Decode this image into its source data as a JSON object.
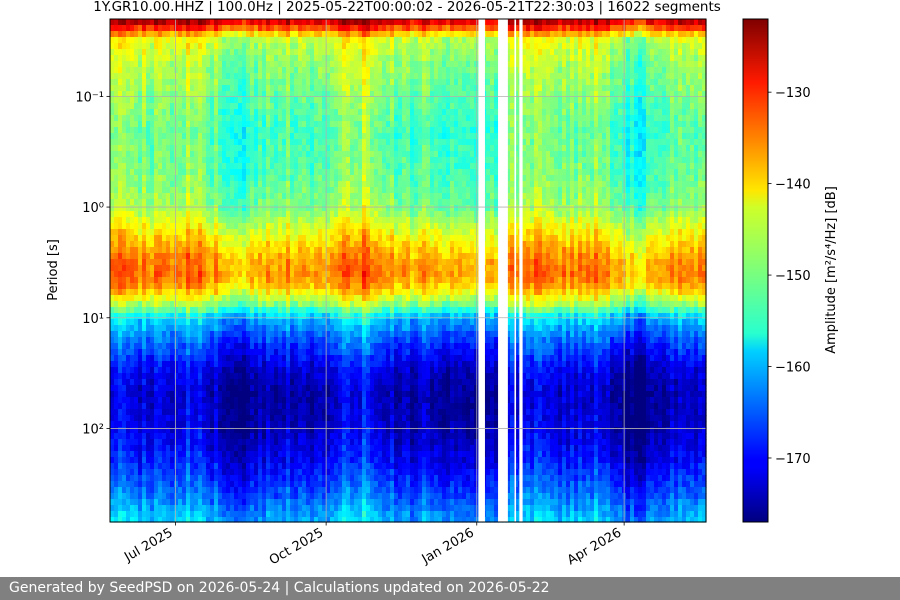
{
  "chart_data": {
    "type": "heatmap",
    "title": "1Y.GR10.00.HHZ | 100.0Hz | 2025-05-22T00:00:02 - 2026-05-21T22:30:03 | 16022 segments",
    "ylabel": "Period [s]",
    "yscale": "log",
    "ylim": [
      0.02,
      700
    ],
    "y_ticks": [
      {
        "value": 0.1,
        "label": "10⁻¹"
      },
      {
        "value": 1,
        "label": "10⁰"
      },
      {
        "value": 10,
        "label": "10¹"
      },
      {
        "value": 100,
        "label": "10²"
      }
    ],
    "x_range": [
      "2025-05-22",
      "2026-05-21"
    ],
    "x_ticks": [
      {
        "value": "2025-07-01",
        "label": "Jul 2025"
      },
      {
        "value": "2025-10-01",
        "label": "Oct 2025"
      },
      {
        "value": "2026-01-01",
        "label": "Jan 2026"
      },
      {
        "value": "2026-04-01",
        "label": "Apr 2026"
      }
    ],
    "grid": true,
    "data_gaps": [
      [
        "2026-01-02",
        "2026-01-06"
      ],
      [
        "2026-01-14",
        "2026-01-20"
      ],
      [
        "2026-01-24",
        "2026-01-25"
      ],
      [
        "2026-01-27",
        "2026-01-29"
      ]
    ],
    "colorbar": {
      "label": "Amplitude [m²/s⁴/Hz] [dB]",
      "colormap": "jet",
      "range": [
        -177,
        -122
      ],
      "ticks": [
        {
          "value": -130,
          "label": "−130"
        },
        {
          "value": -140,
          "label": "−140"
        },
        {
          "value": -150,
          "label": "−150"
        },
        {
          "value": -160,
          "label": "−160"
        },
        {
          "value": -170,
          "label": "−170"
        }
      ]
    },
    "amplitude_profile": [
      {
        "period": 0.02,
        "db": -124
      },
      {
        "period": 0.025,
        "db": -134
      },
      {
        "period": 0.03,
        "db": -145
      },
      {
        "period": 0.05,
        "db": -148
      },
      {
        "period": 0.1,
        "db": -150
      },
      {
        "period": 0.2,
        "db": -152
      },
      {
        "period": 0.5,
        "db": -151
      },
      {
        "period": 1,
        "db": -149
      },
      {
        "period": 2,
        "db": -141
      },
      {
        "period": 3,
        "db": -137
      },
      {
        "period": 4,
        "db": -136
      },
      {
        "period": 5,
        "db": -138
      },
      {
        "period": 6,
        "db": -142
      },
      {
        "period": 8,
        "db": -150
      },
      {
        "period": 10,
        "db": -159
      },
      {
        "period": 15,
        "db": -165
      },
      {
        "period": 20,
        "db": -168
      },
      {
        "period": 30,
        "db": -172
      },
      {
        "period": 50,
        "db": -174
      },
      {
        "period": 100,
        "db": -173
      },
      {
        "period": 200,
        "db": -170
      },
      {
        "period": 400,
        "db": -165
      },
      {
        "period": 700,
        "db": -160
      }
    ]
  },
  "footer": {
    "text": "Generated by SeedPSD on 2026-05-24 | Calculations updated on 2026-05-22"
  }
}
